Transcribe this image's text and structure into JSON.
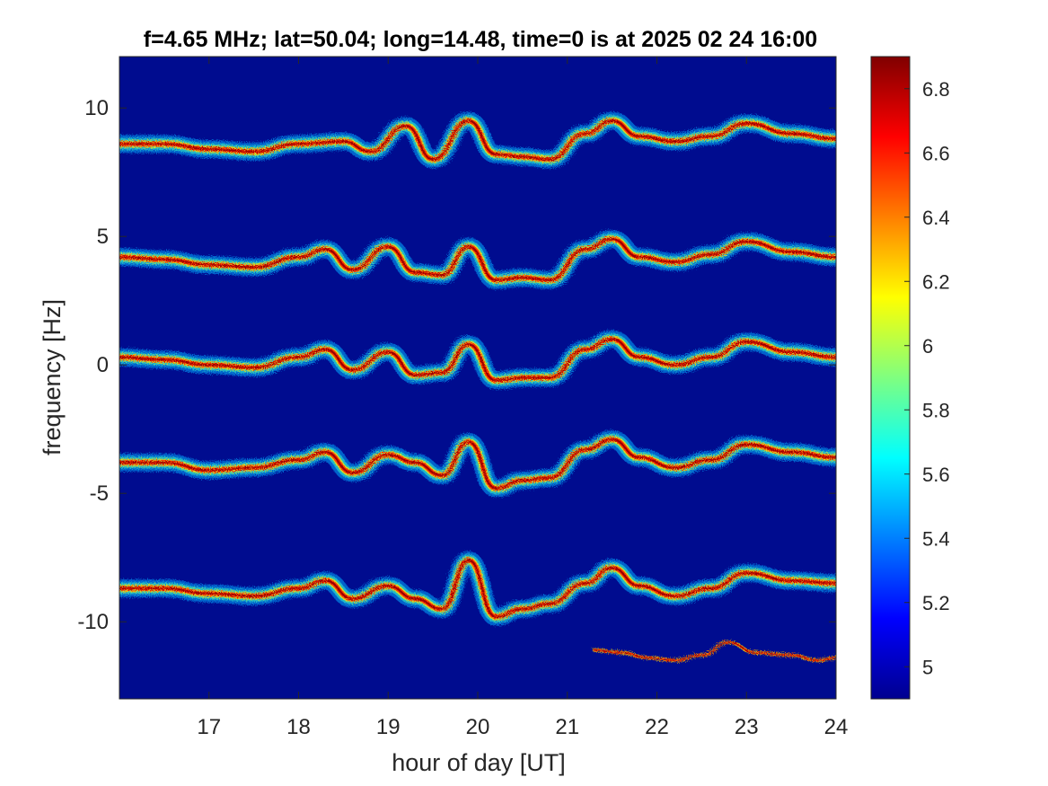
{
  "chart_data": {
    "type": "heatmap",
    "title": "f=4.65 MHz;  lat=50.04; long=14.48, time=0 is at 2025 02 24 16:00",
    "xlabel": "hour of day [UT]",
    "ylabel": "frequency [Hz]",
    "xlim": [
      16,
      24
    ],
    "ylim": [
      -13,
      12
    ],
    "x_ticks": [
      17,
      18,
      19,
      20,
      21,
      22,
      23,
      24
    ],
    "y_ticks": [
      10,
      5,
      0,
      -5,
      -10
    ],
    "colorbar": {
      "range": [
        4.9,
        6.9
      ],
      "ticks": [
        5,
        5.2,
        5.4,
        5.6,
        5.8,
        6,
        6.2,
        6.4,
        6.6,
        6.8
      ],
      "colormap": "jet"
    },
    "background_color": "#000c8f",
    "series": [
      {
        "x": [
          16,
          16.5,
          17,
          17.5,
          18,
          18.5,
          18.8,
          19.2,
          19.5,
          19.9,
          20.2,
          20.5,
          20.8,
          21.2,
          21.5,
          21.8,
          22.2,
          22.6,
          23,
          23.5,
          24
        ],
        "values": [
          8.6,
          8.6,
          8.4,
          8.3,
          8.6,
          8.7,
          8.3,
          9.3,
          8.0,
          9.5,
          8.2,
          8.1,
          8.0,
          9.0,
          9.5,
          8.9,
          8.7,
          8.9,
          9.4,
          9.0,
          8.8
        ]
      },
      {
        "x": [
          16,
          16.5,
          17,
          17.5,
          18,
          18.3,
          18.6,
          19.0,
          19.3,
          19.6,
          19.9,
          20.2,
          20.5,
          20.8,
          21.2,
          21.5,
          21.8,
          22.2,
          22.6,
          23,
          23.5,
          24
        ],
        "values": [
          4.2,
          4.1,
          3.9,
          3.8,
          4.2,
          4.5,
          3.7,
          4.6,
          3.6,
          3.5,
          4.6,
          3.3,
          3.4,
          3.3,
          4.5,
          4.9,
          4.2,
          4.0,
          4.3,
          4.8,
          4.4,
          4.2
        ]
      },
      {
        "x": [
          16,
          16.5,
          17,
          17.5,
          18,
          18.3,
          18.6,
          19.0,
          19.3,
          19.6,
          19.9,
          20.2,
          20.5,
          20.8,
          21.2,
          21.5,
          21.8,
          22.2,
          22.6,
          23,
          23.5,
          24
        ],
        "values": [
          0.3,
          0.2,
          0.0,
          -0.1,
          0.3,
          0.6,
          -0.2,
          0.5,
          -0.4,
          -0.3,
          0.8,
          -0.6,
          -0.5,
          -0.5,
          0.6,
          1.0,
          0.3,
          0.0,
          0.3,
          0.9,
          0.5,
          0.3
        ]
      },
      {
        "x": [
          16,
          16.5,
          17,
          17.5,
          18,
          18.3,
          18.6,
          19.0,
          19.3,
          19.6,
          19.9,
          20.2,
          20.5,
          20.8,
          21.2,
          21.5,
          21.8,
          22.2,
          22.6,
          23,
          23.5,
          24
        ],
        "values": [
          -3.8,
          -3.8,
          -4.1,
          -4.0,
          -3.7,
          -3.4,
          -4.2,
          -3.5,
          -3.8,
          -4.3,
          -3.0,
          -4.8,
          -4.5,
          -4.4,
          -3.3,
          -2.9,
          -3.6,
          -4.0,
          -3.7,
          -3.1,
          -3.4,
          -3.6
        ]
      },
      {
        "x": [
          16,
          16.5,
          17,
          17.5,
          18,
          18.3,
          18.6,
          19.0,
          19.3,
          19.6,
          19.9,
          20.2,
          20.5,
          20.8,
          21.2,
          21.5,
          21.8,
          22.2,
          22.6,
          23,
          23.5,
          24
        ],
        "values": [
          -8.7,
          -8.7,
          -8.9,
          -9.0,
          -8.7,
          -8.4,
          -9.1,
          -8.6,
          -9.1,
          -9.5,
          -7.6,
          -9.8,
          -9.5,
          -9.3,
          -8.5,
          -7.9,
          -8.6,
          -9.0,
          -8.7,
          -8.1,
          -8.4,
          -8.5
        ]
      },
      {
        "x": [
          21.3,
          21.6,
          21.9,
          22.2,
          22.5,
          22.8,
          23.1,
          23.5,
          23.8,
          24
        ],
        "values": [
          -11.1,
          -11.2,
          -11.4,
          -11.5,
          -11.3,
          -10.8,
          -11.2,
          -11.3,
          -11.5,
          -11.4
        ]
      }
    ]
  }
}
